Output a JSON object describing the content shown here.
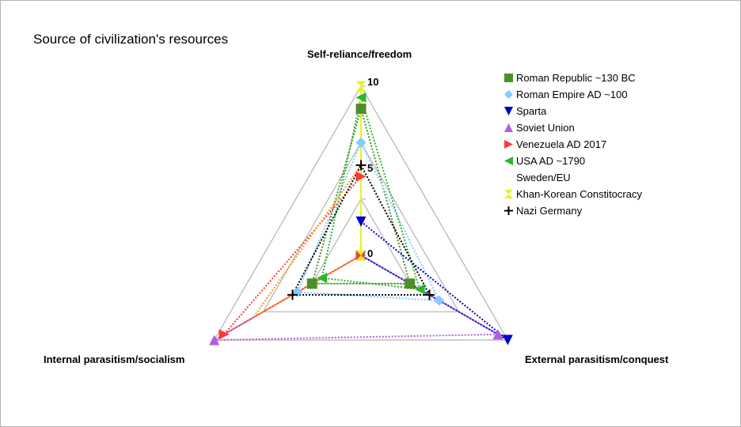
{
  "chart_data": {
    "type": "radar",
    "title": "Source of civilization's resources",
    "axes": [
      "Self-reliance/freedom",
      "External parasitism/conquest",
      "Internal parasitism/socialism"
    ],
    "ticks": [
      "0",
      "5",
      "10"
    ],
    "range": [
      -5,
      10
    ],
    "legend_position": "right",
    "series": [
      {
        "name": "Roman Republic ~130 BC",
        "color": "#4d8f27",
        "marker": "square",
        "values": [
          8,
          0,
          0
        ]
      },
      {
        "name": "Roman Empire AD ~100",
        "color": "#83caff",
        "marker": "diamond",
        "values": [
          5,
          3,
          1.5
        ]
      },
      {
        "name": "Sparta",
        "color": "#0000cc",
        "marker": "triangle-down",
        "values": [
          -2,
          10,
          -5
        ]
      },
      {
        "name": "Soviet Union",
        "color": "#b05ee0",
        "marker": "triangle-up",
        "values": [
          -5,
          9,
          10
        ]
      },
      {
        "name": "Venezuela AD 2017",
        "color": "#ff3838",
        "marker": "triangle-right",
        "values": [
          2,
          -5,
          9
        ]
      },
      {
        "name": "USA AD ~1790",
        "color": "#2bb530",
        "marker": "triangle-left",
        "values": [
          9,
          1,
          -1
        ]
      },
      {
        "name": "Sweden/EU",
        "color": "#ff950e",
        "marker": "bowtie",
        "values": [
          3,
          -5,
          6
        ]
      },
      {
        "name": "Khan-Korean Constitocracy",
        "color": "#e6f41c",
        "marker": "hourglass",
        "values": [
          10,
          -5,
          -5
        ]
      },
      {
        "name": "Nazi Germany",
        "color": "#000000",
        "marker": "plus",
        "values": [
          3,
          2,
          2
        ]
      }
    ]
  }
}
